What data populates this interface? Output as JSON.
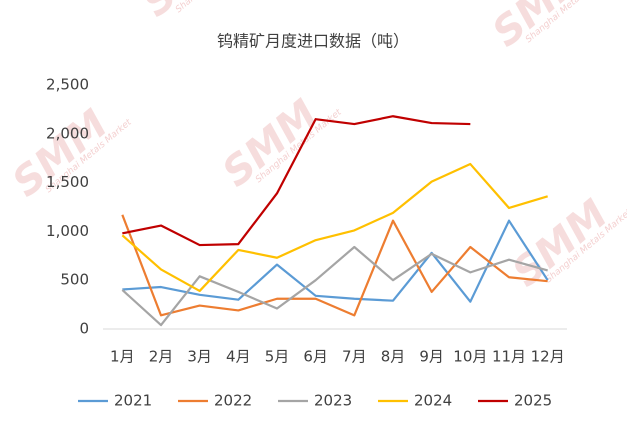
{
  "chart_data": {
    "type": "line",
    "title": "钨精矿月度进口数据（吨）",
    "categories": [
      "1月",
      "2月",
      "3月",
      "4月",
      "5月",
      "6月",
      "7月",
      "8月",
      "9月",
      "10月",
      "11月",
      "12月"
    ],
    "series": [
      {
        "name": "2021",
        "color": "#5b9bd5",
        "values": [
          405,
          430,
          350,
          300,
          660,
          340,
          310,
          290,
          780,
          280,
          1110,
          500
        ]
      },
      {
        "name": "2022",
        "color": "#ed7d31",
        "values": [
          1170,
          140,
          240,
          190,
          310,
          310,
          140,
          1110,
          380,
          840,
          530,
          490
        ]
      },
      {
        "name": "2023",
        "color": "#a5a5a5",
        "values": [
          400,
          40,
          540,
          380,
          210,
          500,
          840,
          500,
          770,
          580,
          710,
          600
        ]
      },
      {
        "name": "2024",
        "color": "#ffc000",
        "values": [
          960,
          610,
          390,
          810,
          730,
          910,
          1010,
          1190,
          1510,
          1690,
          1240,
          1360
        ]
      },
      {
        "name": "2025",
        "color": "#c00000",
        "values": [
          980,
          1060,
          860,
          870,
          1390,
          2150,
          2100,
          2180,
          2110,
          2100,
          null,
          null
        ]
      }
    ],
    "ylim": [
      0,
      2500
    ],
    "yticks": [
      0,
      500,
      {
        "value": 1000,
        "label": "1,000"
      },
      {
        "value": 1500,
        "label": "1,500"
      },
      {
        "value": 2000,
        "label": "2,000"
      },
      {
        "value": 2500,
        "label": "2,500"
      }
    ],
    "grid": false,
    "legend": "bottom",
    "watermark": {
      "logo": "SMM",
      "tagline": "Shanghai Metals Market"
    }
  }
}
